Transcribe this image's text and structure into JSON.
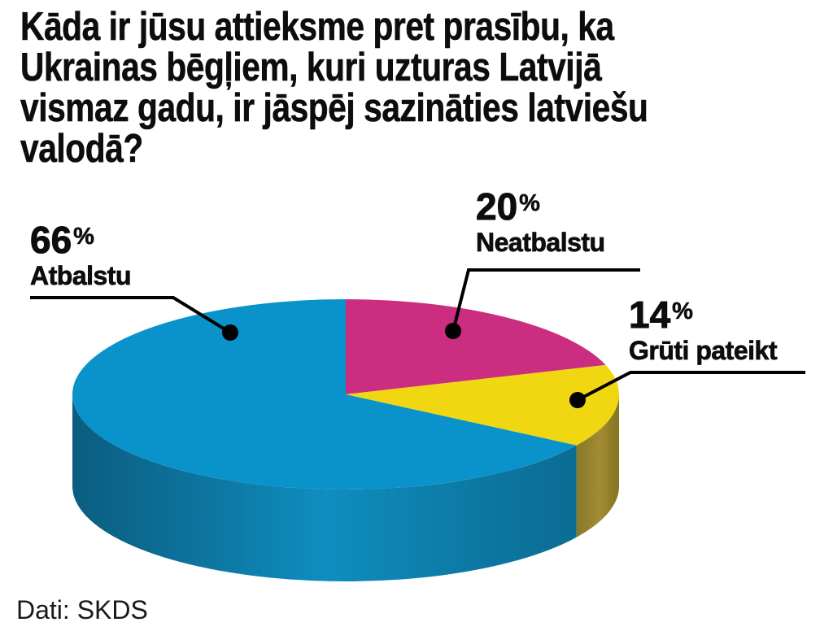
{
  "title": {
    "lines": [
      "Kāda ir jūsu attieksme pret prasību, ka",
      "Ukrainas bēgļiem, kuri uzturas Latvijā",
      "vismaz gadu, ir jāspēj sazināties latviešu",
      "valodā?"
    ]
  },
  "source": "Dati: SKDS",
  "percent_sign": "%",
  "chart_data": {
    "type": "pie",
    "style": "3d-cylinder",
    "title": "Kāda ir jūsu attieksme pret prasību, ka Ukrainas bēgļiem, kuri uzturas Latvijā vismaz gadu, ir jāspēj sazināties latviešu valodā?",
    "start_at": "12-oclock",
    "direction": "clockwise",
    "units": "%",
    "slices": [
      {
        "label": "Neatbalstu",
        "value": 20,
        "color": "#cb2e80",
        "side_gradient": null
      },
      {
        "label": "Grūti pateikt",
        "value": 14,
        "color": "#f0d711",
        "side_gradient": [
          {
            "o": 0,
            "c": "#8a7827"
          },
          {
            "o": 0.55,
            "c": "#a18c33"
          },
          {
            "o": 1,
            "c": "#857322"
          }
        ]
      },
      {
        "label": "Atbalstu",
        "value": 66,
        "color": "#0a93cb",
        "side_gradient": [
          {
            "o": 0,
            "c": "#0b5d80"
          },
          {
            "o": 0.18,
            "c": "#0c6d94"
          },
          {
            "o": 0.5,
            "c": "#0f8dbf"
          },
          {
            "o": 0.85,
            "c": "#0c759f"
          },
          {
            "o": 1,
            "c": "#0b6d94"
          }
        ]
      }
    ],
    "source": "Dati: SKDS"
  }
}
